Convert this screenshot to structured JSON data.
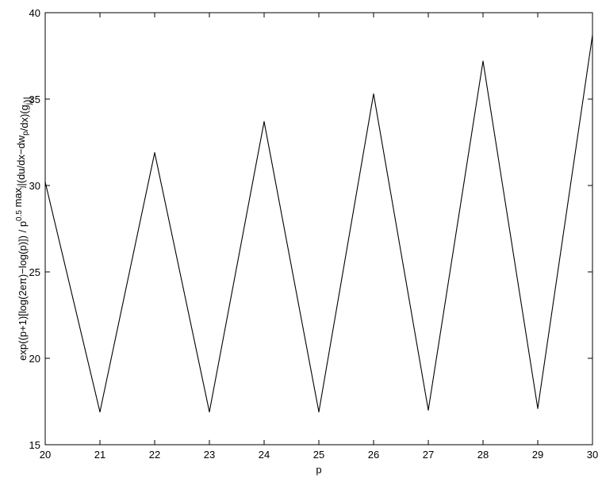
{
  "chart_data": {
    "type": "line",
    "title": "",
    "xlabel": "p",
    "ylabel": {
      "segments": [
        {
          "text": "exp((p+1)[log(2eπ)−log(p)]) / p",
          "sub": false,
          "sup": false
        },
        {
          "text": "0.5",
          "sub": false,
          "sup": true
        },
        {
          "text": " max",
          "sub": false,
          "sup": false
        },
        {
          "text": "j",
          "sub": true,
          "sup": false
        },
        {
          "text": "|(du/dx−dw",
          "sub": false,
          "sup": false
        },
        {
          "text": "p",
          "sub": true,
          "sup": false
        },
        {
          "text": "/dx)(g",
          "sub": false,
          "sup": false
        },
        {
          "text": "j",
          "sub": true,
          "sup": false
        },
        {
          "text": ")|",
          "sub": false,
          "sup": false
        }
      ]
    },
    "xlim": [
      20,
      30
    ],
    "ylim": [
      15,
      40
    ],
    "xticks": [
      20,
      21,
      22,
      23,
      24,
      25,
      26,
      27,
      28,
      29,
      30
    ],
    "yticks": [
      15,
      20,
      25,
      30,
      35,
      40
    ],
    "grid": false,
    "series": [
      {
        "x": [
          20,
          21,
          22,
          23,
          24,
          25,
          26,
          27,
          28,
          29,
          30
        ],
        "y": [
          30.2,
          16.9,
          31.9,
          16.9,
          33.7,
          16.9,
          35.3,
          17.0,
          37.2,
          17.1,
          38.7
        ],
        "color": "#000000"
      }
    ]
  }
}
